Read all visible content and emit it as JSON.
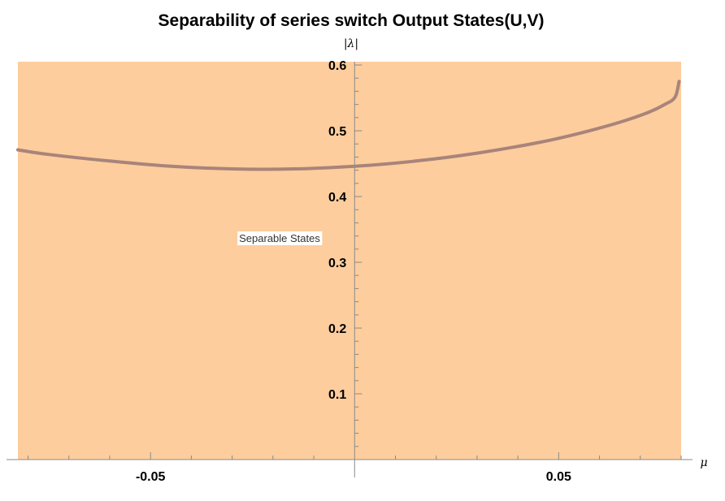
{
  "chart_data": {
    "type": "area",
    "title": "Separability of series switch Output States(U,V)",
    "xlabel": "μ",
    "ylabel": "|λ|",
    "xlim": [
      -0.0825,
      0.08
    ],
    "ylim": [
      0,
      0.605
    ],
    "xticks_major": [
      -0.05,
      0.05
    ],
    "xtick_labels": [
      "-0.05",
      "0.05"
    ],
    "yticks_major": [
      0.1,
      0.2,
      0.3,
      0.4,
      0.5,
      0.6
    ],
    "ytick_labels": [
      "0.1",
      "0.2",
      "0.3",
      "0.4",
      "0.5",
      "0.6"
    ],
    "grid": false,
    "region_label": "Separable States",
    "region_color": "#fdcd9d",
    "curve_color": "#a8847a",
    "series": [
      {
        "x": [
          -0.0825,
          -0.075,
          -0.06,
          -0.045,
          -0.03,
          -0.015,
          0.0,
          0.015,
          0.03,
          0.045,
          0.055,
          0.065,
          0.072,
          0.076,
          0.0785,
          0.0795
        ],
        "values": [
          0.471,
          0.464,
          0.454,
          0.446,
          0.442,
          0.442,
          0.446,
          0.454,
          0.466,
          0.482,
          0.496,
          0.513,
          0.528,
          0.54,
          0.551,
          0.575
        ]
      }
    ]
  }
}
